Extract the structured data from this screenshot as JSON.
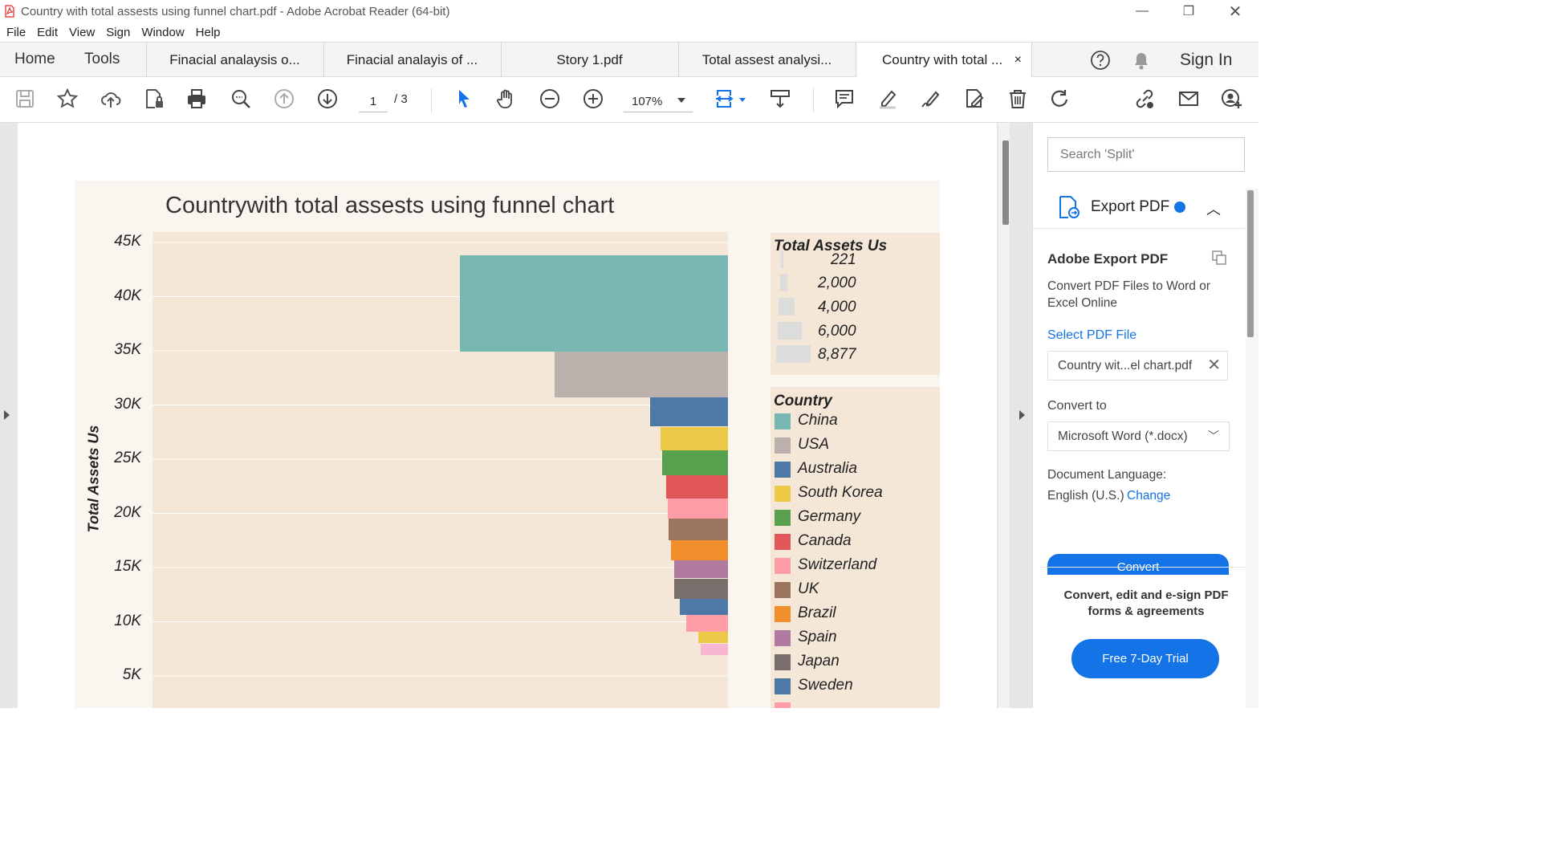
{
  "window": {
    "title": "Country with total assests using funnel chart.pdf - Adobe Acrobat Reader (64-bit)"
  },
  "menu": [
    "File",
    "Edit",
    "View",
    "Sign",
    "Window",
    "Help"
  ],
  "tabs": {
    "home": "Home",
    "tools": "Tools",
    "documents": [
      {
        "label": "Finacial analaysis o..."
      },
      {
        "label": "Finacial analayis of ..."
      },
      {
        "label": "Story 1.pdf"
      },
      {
        "label": "Total assest analysi..."
      },
      {
        "label": "Country with total ..."
      }
    ],
    "close_glyph": "×",
    "sign_in": "Sign In"
  },
  "toolbar": {
    "page_current": "1",
    "page_total": "/ 3",
    "zoom": "107%"
  },
  "right_panel": {
    "search_placeholder": "Search 'Split'",
    "export_title": "Export PDF",
    "aep_title": "Adobe Export PDF",
    "aep_desc": "Convert PDF Files to Word or Excel Online",
    "select_file": "Select PDF File",
    "file_name": "Country wit...el chart.pdf",
    "convert_to_label": "Convert to",
    "convert_to_value": "Microsoft Word (*.docx)",
    "doc_lang_label": "Document Language:",
    "doc_lang_value": "English (U.S.)",
    "change": "Change",
    "convert_button": "Convert",
    "promo": "Convert, edit and e-sign PDF forms & agreements",
    "trial_button": "Free 7-Day Trial"
  },
  "chart_data": {
    "type": "bar",
    "title": "Countrywith total assests using funnel chart",
    "ylabel": "Total Assets Us",
    "y_ticks": [
      "45K",
      "40K",
      "35K",
      "30K",
      "25K",
      "20K",
      "15K",
      "10K",
      "5K"
    ],
    "size_legend": {
      "title": "Total Assets Us",
      "items": [
        "221",
        "2,000",
        "4,000",
        "6,000",
        "8,877"
      ]
    },
    "color_legend": {
      "title": "Country",
      "items": [
        {
          "name": "China",
          "color": "#79b7b2"
        },
        {
          "name": "USA",
          "color": "#bab0ac"
        },
        {
          "name": "Australia",
          "color": "#4e79a7"
        },
        {
          "name": "South Korea",
          "color": "#edc948"
        },
        {
          "name": "Germany",
          "color": "#59a14f"
        },
        {
          "name": "Canada",
          "color": "#e15759"
        },
        {
          "name": "Switzerland",
          "color": "#ff9da7"
        },
        {
          "name": "UK",
          "color": "#9c755f"
        },
        {
          "name": "Brazil",
          "color": "#f28e2b"
        },
        {
          "name": "Spain",
          "color": "#b07aa1"
        },
        {
          "name": "Japan",
          "color": "#79706e"
        },
        {
          "name": "Sweden",
          "color": "#4e79a7"
        },
        {
          "name": "",
          "color": "#ff9da7"
        }
      ]
    },
    "funnel_segments": [
      {
        "country": "China",
        "y_top": 43800,
        "y_bottom": 34900,
        "size": 8877,
        "color": "#79b7b2"
      },
      {
        "country": "USA",
        "y_top": 34900,
        "y_bottom": 30700,
        "size": 3700,
        "color": "#bab0ac"
      },
      {
        "country": "Australia",
        "y_top": 30700,
        "y_bottom": 28000,
        "size": 2100,
        "color": "#4e79a7"
      },
      {
        "country": "South Korea",
        "y_top": 28000,
        "y_bottom": 25800,
        "size": 1550,
        "color": "#edc948"
      },
      {
        "country": "Germany",
        "y_top": 25800,
        "y_bottom": 23500,
        "size": 1500,
        "color": "#59a14f"
      },
      {
        "country": "Canada",
        "y_top": 23500,
        "y_bottom": 21400,
        "size": 1300,
        "color": "#e15759"
      },
      {
        "country": "Switzerland",
        "y_top": 21400,
        "y_bottom": 19500,
        "size": 1250,
        "color": "#ff9da7"
      },
      {
        "country": "UK",
        "y_top": 19500,
        "y_bottom": 17500,
        "size": 1200,
        "color": "#9c755f"
      },
      {
        "country": "Brazil",
        "y_top": 17500,
        "y_bottom": 15700,
        "size": 1100,
        "color": "#f28e2b"
      },
      {
        "country": "Spain",
        "y_top": 15700,
        "y_bottom": 14000,
        "size": 1000,
        "color": "#b07aa1"
      },
      {
        "country": "Japan",
        "y_top": 14000,
        "y_bottom": 12100,
        "size": 1000,
        "color": "#79706e"
      },
      {
        "country": "Sweden",
        "y_top": 12100,
        "y_bottom": 10600,
        "size": 800,
        "color": "#4e79a7"
      },
      {
        "country": "",
        "y_top": 10600,
        "y_bottom": 9100,
        "size": 600,
        "color": "#ff9da7"
      },
      {
        "country": "",
        "y_top": 9100,
        "y_bottom": 8000,
        "size": 300,
        "color": "#edc948"
      },
      {
        "country": "",
        "y_top": 8000,
        "y_bottom": 6900,
        "size": 250,
        "color": "#f7b6d2"
      }
    ],
    "ylim": [
      0,
      47000
    ],
    "grid": true
  }
}
